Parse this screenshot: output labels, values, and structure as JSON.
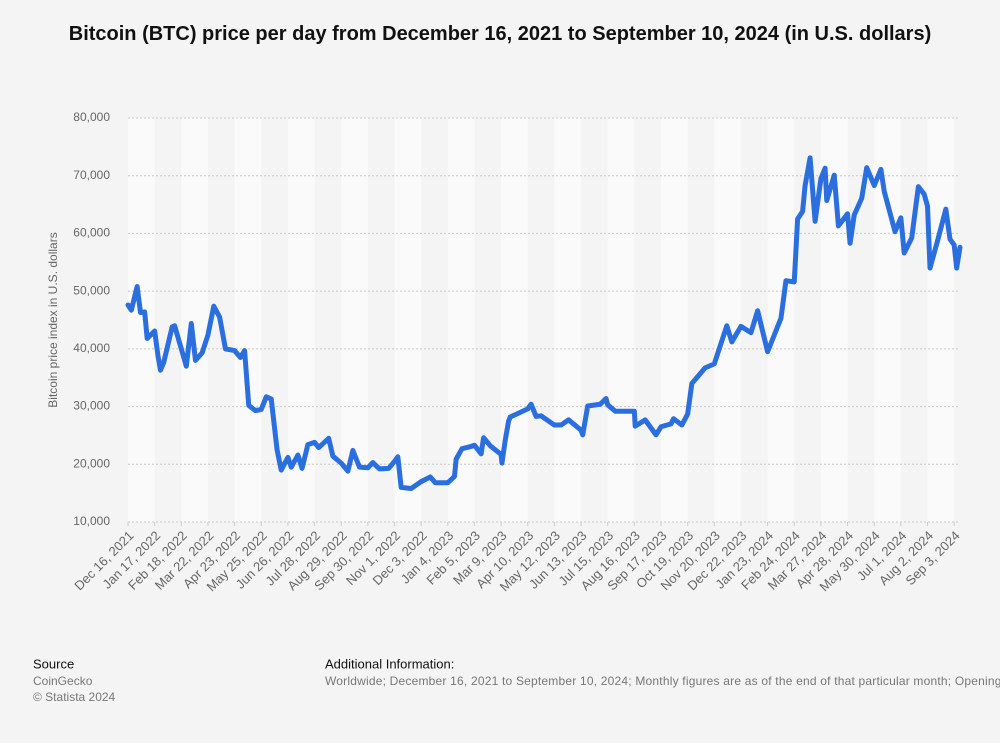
{
  "chart_data": {
    "type": "line",
    "title": "Bitcoin (BTC) price per day from December 16, 2021 to September 10, 2024 (in U.S. dollars)",
    "y_label": "Bitcoin price index in U.S. dollars",
    "x": [
      "Dec 16, 2021",
      "Dec 20, 2021",
      "Dec 27, 2021",
      "Dec 31, 2021",
      "Jan 5, 2022",
      "Jan 8, 2022",
      "Jan 17, 2022",
      "Jan 21, 2022",
      "Jan 24, 2022",
      "Jan 28, 2022",
      "Feb 7, 2022",
      "Feb 10, 2022",
      "Feb 18, 2022",
      "Feb 24, 2022",
      "Mar 2, 2022",
      "Mar 7, 2022",
      "Mar 15, 2022",
      "Mar 22, 2022",
      "Mar 29, 2022",
      "Apr 5, 2022",
      "Apr 12, 2022",
      "Apr 23, 2022",
      "Apr 30, 2022",
      "May 5, 2022",
      "May 10, 2022",
      "May 18, 2022",
      "May 25, 2022",
      "May 31, 2022",
      "Jun 6, 2022",
      "Jun 13, 2022",
      "Jun 18, 2022",
      "Jun 26, 2022",
      "Jun 30, 2022",
      "Jul 8, 2022",
      "Jul 13, 2022",
      "Jul 20, 2022",
      "Jul 28, 2022",
      "Aug 2, 2022",
      "Aug 14, 2022",
      "Aug 19, 2022",
      "Aug 29, 2022",
      "Sep 6, 2022",
      "Sep 12, 2022",
      "Sep 20, 2022",
      "Sep 30, 2022",
      "Oct 6, 2022",
      "Oct 14, 2022",
      "Oct 25, 2022",
      "Nov 1, 2022",
      "Nov 5, 2022",
      "Nov 9, 2022",
      "Nov 21, 2022",
      "Dec 3, 2022",
      "Dec 14, 2022",
      "Dec 20, 2022",
      "Jan 4, 2023",
      "Jan 12, 2023",
      "Jan 14, 2023",
      "Jan 21, 2023",
      "Feb 1, 2023",
      "Feb 5, 2023",
      "Feb 13, 2023",
      "Feb 16, 2023",
      "Feb 24, 2023",
      "Mar 9, 2023",
      "Mar 10, 2023",
      "Mar 14, 2023",
      "Mar 18, 2023",
      "Mar 20, 2023",
      "Apr 10, 2023",
      "Apr 14, 2023",
      "Apr 20, 2023",
      "Apr 26, 2023",
      "May 12, 2023",
      "May 20, 2023",
      "May 29, 2023",
      "Jun 13, 2023",
      "Jun 15, 2023",
      "Jun 21, 2023",
      "Jul 6, 2023",
      "Jul 13, 2023",
      "Jul 15, 2023",
      "Jul 24, 2023",
      "Aug 16, 2023",
      "Aug 17, 2023",
      "Aug 29, 2023",
      "Sep 11, 2023",
      "Sep 17, 2023",
      "Sep 29, 2023",
      "Oct 2, 2023",
      "Oct 12, 2023",
      "Oct 19, 2023",
      "Oct 24, 2023",
      "Nov 9, 2023",
      "Nov 20, 2023",
      "Dec 5, 2023",
      "Dec 11, 2023",
      "Dec 22, 2023",
      "Jan 3, 2024",
      "Jan 11, 2024",
      "Jan 23, 2024",
      "Feb 8, 2024",
      "Feb 14, 2024",
      "Feb 24, 2024",
      "Feb 28, 2024",
      "Mar 5, 2024",
      "Mar 8, 2024",
      "Mar 14, 2024",
      "Mar 20, 2024",
      "Mar 27, 2024",
      "Apr 1, 2024",
      "Apr 3, 2024",
      "Apr 12, 2024",
      "Apr 17, 2024",
      "Apr 28, 2024",
      "May 1, 2024",
      "May 6, 2024",
      "May 15, 2024",
      "May 21, 2024",
      "May 30, 2024",
      "Jun 7, 2024",
      "Jun 11, 2024",
      "Jun 24, 2024",
      "Jul 1, 2024",
      "Jul 5, 2024",
      "Jul 14, 2024",
      "Jul 22, 2024",
      "Jul 29, 2024",
      "Aug 2, 2024",
      "Aug 5, 2024",
      "Aug 14, 2024",
      "Aug 24, 2024",
      "Aug 29, 2024",
      "Sep 3, 2024",
      "Sep 6, 2024",
      "Sep 10, 2024"
    ],
    "series": [
      {
        "color": "#2b6fde",
        "values": [
          47600,
          46700,
          50800,
          46300,
          46400,
          41800,
          43100,
          38800,
          36300,
          37700,
          43800,
          44000,
          40000,
          37000,
          44400,
          38000,
          39300,
          42400,
          47400,
          45500,
          40000,
          39700,
          38500,
          39700,
          30200,
          29300,
          29500,
          31700,
          31300,
          22500,
          19000,
          21200,
          19500,
          21600,
          19300,
          23400,
          23800,
          22900,
          24500,
          21400,
          20200,
          18800,
          22400,
          19500,
          19400,
          20300,
          19200,
          19300,
          20500,
          21300,
          16000,
          15800,
          17000,
          17800,
          16800,
          16800,
          17900,
          20900,
          22700,
          23100,
          23300,
          21800,
          24600,
          23200,
          21700,
          20200,
          24200,
          27500,
          28200,
          29600,
          30400,
          28300,
          28400,
          26800,
          26800,
          27700,
          25900,
          25100,
          30100,
          30400,
          31400,
          30300,
          29200,
          29200,
          26600,
          27700,
          25100,
          26500,
          27000,
          27900,
          26800,
          28700,
          34000,
          36700,
          37400,
          44000,
          41200,
          43900,
          42800,
          46600,
          39500,
          45300,
          51800,
          51600,
          62500,
          63800,
          68300,
          73100,
          62100,
          69500,
          71300,
          65700,
          70100,
          61300,
          63400,
          58300,
          63200,
          66100,
          71400,
          68300,
          71100,
          67300,
          60300,
          62700,
          56600,
          59200,
          68100,
          66800,
          64700,
          54000,
          58700,
          64200,
          59000,
          58000,
          54000,
          57600
        ]
      }
    ],
    "xlim": [
      "Dec 16, 2021",
      "Sep 10, 2024"
    ],
    "xticks": [
      "Dec 16, 2021",
      "Jan 17, 2022",
      "Feb 18, 2022",
      "Mar 22, 2022",
      "Apr 23, 2022",
      "May 25, 2022",
      "Jun 26, 2022",
      "Jul 28, 2022",
      "Aug 29, 2022",
      "Sep 30, 2022",
      "Nov 1, 2022",
      "Dec 3, 2022",
      "Jan 4, 2023",
      "Feb 5, 2023",
      "Mar 9, 2023",
      "Apr 10, 2023",
      "May 12, 2023",
      "Jun 13, 2023",
      "Jul 15, 2023",
      "Aug 16, 2023",
      "Sep 17, 2023",
      "Oct 19, 2023",
      "Nov 20, 2023",
      "Dec 22, 2023",
      "Jan 23, 2024",
      "Feb 24, 2024",
      "Mar 27, 2024",
      "Apr 28, 2024",
      "May 30, 2024",
      "Jul 1, 2024",
      "Aug 2, 2024",
      "Sep 3, 2024"
    ],
    "ylim": [
      10000,
      80000
    ],
    "yticks": [
      {
        "value": 10000,
        "label": "10,000"
      },
      {
        "value": 20000,
        "label": "20,000"
      },
      {
        "value": 30000,
        "label": "30,000"
      },
      {
        "value": 40000,
        "label": "40,000"
      },
      {
        "value": 50000,
        "label": "50,000"
      },
      {
        "value": 60000,
        "label": "60,000"
      },
      {
        "value": 70000,
        "label": "70,000"
      },
      {
        "value": 80000,
        "label": "80,000"
      }
    ],
    "grid": true,
    "source_label": "Source",
    "source": "CoinGecko",
    "copyright": "© Statista 2024",
    "info_label": "Additional Information:",
    "info": "Worldwide; December 16, 2021 to September 10, 2024; Monthly figures are as of the end of that particular month; Opening"
  }
}
